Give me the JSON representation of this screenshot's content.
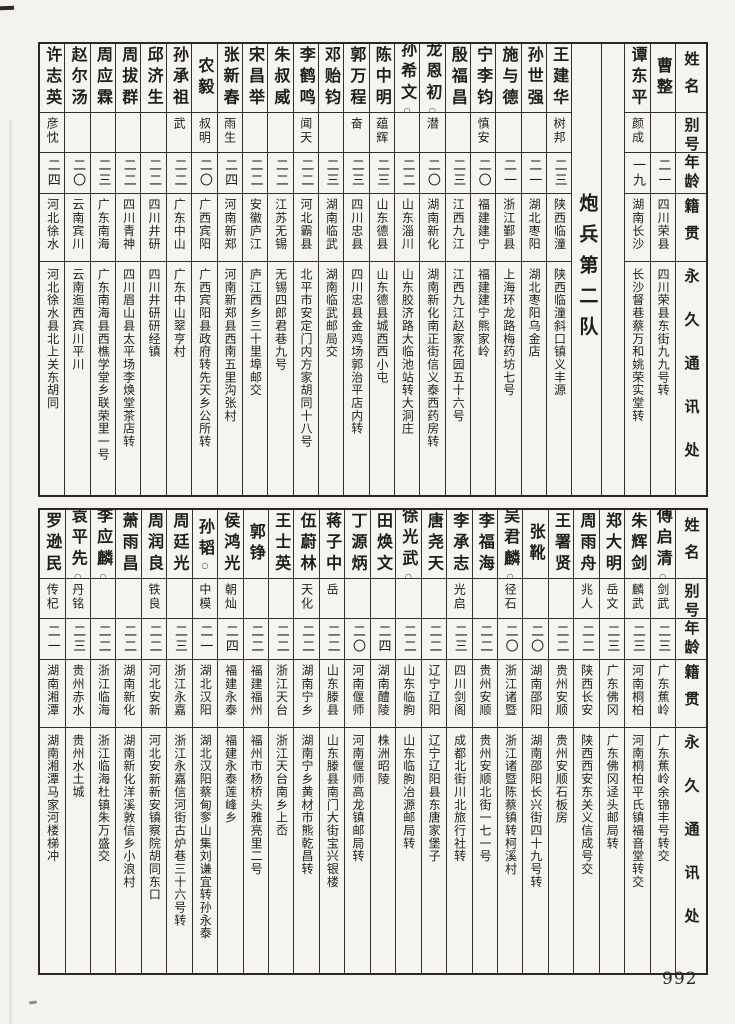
{
  "page": {
    "number": "992"
  },
  "headers": {
    "name": "姓名",
    "alias": "别号",
    "age": "年龄",
    "native": "籍贯",
    "address": "永久通讯处"
  },
  "unit_label": "炮兵第二队",
  "tables": [
    {
      "persons": [
        {
          "name": "曹整",
          "mark": "",
          "alias": "",
          "age": "二一",
          "native": "四川荣县",
          "address": "四川荣县东街九九号转"
        },
        {
          "name": "谭东平",
          "mark": "",
          "alias": "颜成",
          "age": "一九",
          "native": "湖南长沙",
          "address": "长沙督巷蔡万和姚荣实堂转"
        },
        {
          "name": "王建华",
          "mark": "",
          "alias": "树邦",
          "age": "二三",
          "native": "陕西临潼",
          "address": "陕西临潼斜口镇义丰源"
        },
        {
          "name": "孙世强",
          "mark": "",
          "alias": "",
          "age": "二一",
          "native": "湖北枣阳",
          "address": "湖北枣阳乌金店"
        },
        {
          "name": "施与德",
          "mark": "",
          "alias": "",
          "age": "二一",
          "native": "浙江鄞县",
          "address": "上海环龙路梅药坊七号"
        },
        {
          "name": "宁李钧",
          "mark": "",
          "alias": "慎安",
          "age": "二〇",
          "native": "福建建宁",
          "address": "福建建宁熊家岭"
        },
        {
          "name": "殷福昌",
          "mark": "",
          "alias": "",
          "age": "二三",
          "native": "江西九江",
          "address": "江西九江赵家花园五十六号"
        },
        {
          "name": "龙恩初",
          "mark": "○",
          "alias": "潜",
          "age": "二〇",
          "native": "湖南新化",
          "address": "湖南新化南正街信义泰西药房转"
        },
        {
          "name": "孙希文",
          "mark": "○",
          "alias": "",
          "age": "二二",
          "native": "山东淄川",
          "address": "山东胶济路大临池站转大洞庄"
        },
        {
          "name": "陈中明",
          "mark": "",
          "alias": "蕴辉",
          "age": "二三",
          "native": "山东德县",
          "address": "山东德县城西西小屯"
        },
        {
          "name": "郭万程",
          "mark": "",
          "alias": "奋",
          "age": "二三",
          "native": "四川忠县",
          "address": "四川忠县金鸡场郭治平店内转"
        },
        {
          "name": "邓贻钧",
          "mark": "",
          "alias": "",
          "age": "二三",
          "native": "湖南临武",
          "address": "湖南临武邮局交"
        },
        {
          "name": "李鹤鸣",
          "mark": "",
          "alias": "闻天",
          "age": "二二",
          "native": "河北霸县",
          "address": "北平市安定门内方家胡同十八号"
        },
        {
          "name": "朱叔威",
          "mark": "",
          "alias": "",
          "age": "二二",
          "native": "江苏无锡",
          "address": "无锡四郎君巷九号"
        },
        {
          "name": "宋昌举",
          "mark": "",
          "alias": "",
          "age": "二二",
          "native": "安徽庐江",
          "address": "庐江西乡三十里埠邮交"
        },
        {
          "name": "张新春",
          "mark": "",
          "alias": "雨生",
          "age": "二四",
          "native": "河南新郑",
          "address": "河南新郑县西南五里沟张村"
        },
        {
          "name": "农毅",
          "mark": "",
          "alias": "叔明",
          "age": "二〇",
          "native": "广西宾阳",
          "address": "广西宾阳县政府转先天乡公所转"
        },
        {
          "name": "孙承祖",
          "mark": "",
          "alias": "武",
          "age": "二二",
          "native": "广东中山",
          "address": "广东中山翠亨村"
        },
        {
          "name": "邱济生",
          "mark": "",
          "alias": "",
          "age": "二二",
          "native": "四川井研",
          "address": "四川井研研经镇"
        },
        {
          "name": "周拔群",
          "mark": "",
          "alias": "",
          "age": "二二",
          "native": "四川青神",
          "address": "四川眉山县太平场李焕堂茶店转"
        },
        {
          "name": "周应霖",
          "mark": "",
          "alias": "",
          "age": "二三",
          "native": "广东南海",
          "address": "广东南海县西樵学堂乡联荣里一号"
        },
        {
          "name": "赵尔汤",
          "mark": "",
          "alias": "",
          "age": "二〇",
          "native": "云南宾川",
          "address": "云南迤西宾川平川"
        },
        {
          "name": "许志英",
          "mark": "",
          "alias": "彦忱",
          "age": "二四",
          "native": "河北徐水",
          "address": "河北徐水县北上关东胡同"
        }
      ]
    },
    {
      "persons": [
        {
          "name": "傅启清",
          "mark": "○",
          "alias": "剑武",
          "age": "二三",
          "native": "广东蕉岭",
          "address": "广东蕉岭余锦丰号转交"
        },
        {
          "name": "朱辉剑",
          "mark": "",
          "alias": "麟武",
          "age": "二三",
          "native": "河南桐柏",
          "address": "河南桐柏平氏镇福音堂转交"
        },
        {
          "name": "郑大明",
          "mark": "",
          "alias": "岳文",
          "age": "二三",
          "native": "广东佛冈",
          "address": "广东佛冈迳头邮局转"
        },
        {
          "name": "周雨舟",
          "mark": "",
          "alias": "兆人",
          "age": "二二",
          "native": "陕西长安",
          "address": "陕西西安东关义信成号交"
        },
        {
          "name": "王署贤",
          "mark": "",
          "alias": "",
          "age": "二二",
          "native": "贵州安顺",
          "address": "贵州安顺石板房"
        },
        {
          "name": "张靴",
          "mark": "",
          "alias": "",
          "age": "二〇",
          "native": "湖南邵阳",
          "address": "湖南邵阳长兴街四十九号转"
        },
        {
          "name": "吴君麟",
          "mark": "○",
          "alias": "径石",
          "age": "二〇",
          "native": "浙江诸暨",
          "address": "浙江诸暨陈蔡镇转柯溪村"
        },
        {
          "name": "李福海",
          "mark": "",
          "alias": "",
          "age": "二二",
          "native": "贵州安顺",
          "address": "贵州安顺北街一七一号"
        },
        {
          "name": "李承志",
          "mark": "",
          "alias": "光启",
          "age": "二三",
          "native": "四川剑阁",
          "address": "成都北街川北旅行社转"
        },
        {
          "name": "唐尧天",
          "mark": "",
          "alias": "",
          "age": "二二",
          "native": "辽宁辽阳",
          "address": "辽宁辽阳县东唐家堡子"
        },
        {
          "name": "徐光武",
          "mark": "○",
          "alias": "",
          "age": "二二",
          "native": "山东临朐",
          "address": "山东临朐冶源邮局转"
        },
        {
          "name": "田焕文",
          "mark": "",
          "alias": "",
          "age": "二四",
          "native": "湖南醴陵",
          "address": "株洲昭陵"
        },
        {
          "name": "丁源炳",
          "mark": "",
          "alias": "",
          "age": "二〇",
          "native": "河南偃师",
          "address": "河南偃师高龙镇邮局转"
        },
        {
          "name": "蒋子中",
          "mark": "",
          "alias": "岳",
          "age": "二二",
          "native": "山东滕县",
          "address": "山东滕县南门大街宝兴银楼"
        },
        {
          "name": "伍蔚林",
          "mark": "",
          "alias": "天化",
          "age": "二二",
          "native": "湖南宁乡",
          "address": "湖南宁乡黄材市熊乾昌转"
        },
        {
          "name": "王士英",
          "mark": "",
          "alias": "",
          "age": "二二",
          "native": "浙江天台",
          "address": "浙江天台南乡上岙"
        },
        {
          "name": "郭铮",
          "mark": "",
          "alias": "",
          "age": "二二",
          "native": "福建福州",
          "address": "福州市杨桥头雅亮里二号"
        },
        {
          "name": "侯鸿光",
          "mark": "",
          "alias": "朝灿",
          "age": "二四",
          "native": "福建永泰",
          "address": "福建永泰莲峰乡"
        },
        {
          "name": "孙韬",
          "mark": "○",
          "alias": "中模",
          "age": "二一",
          "native": "湖北汉阳",
          "address": "湖北汉阳蔡甸奓山集刘谦宜转孙永泰"
        },
        {
          "name": "周廷光",
          "mark": "",
          "alias": "",
          "age": "二三",
          "native": "浙江永嘉",
          "address": "浙江永嘉信河街古炉巷三十六号转"
        },
        {
          "name": "周润良",
          "mark": "",
          "alias": "铁良",
          "age": "二二",
          "native": "河北安新",
          "address": "河北安新新安镇察院胡同东口"
        },
        {
          "name": "萧雨昌",
          "mark": "",
          "alias": "",
          "age": "二二",
          "native": "湖南新化",
          "address": "湖南新化洋溪敦信乡小浪村"
        },
        {
          "name": "李应麟",
          "mark": "○",
          "alias": "",
          "age": "二二",
          "native": "浙江临海",
          "address": "浙江临海杜镇朱万盛交"
        },
        {
          "name": "袁平先",
          "mark": "○",
          "alias": "丹铭",
          "age": "二三",
          "native": "贵州赤水",
          "address": "贵州水土城"
        },
        {
          "name": "罗逊民",
          "mark": "",
          "alias": "传杞",
          "age": "二一",
          "native": "湖南湘潭",
          "address": "湖南湘潭马家河楼梯冲"
        }
      ]
    }
  ]
}
